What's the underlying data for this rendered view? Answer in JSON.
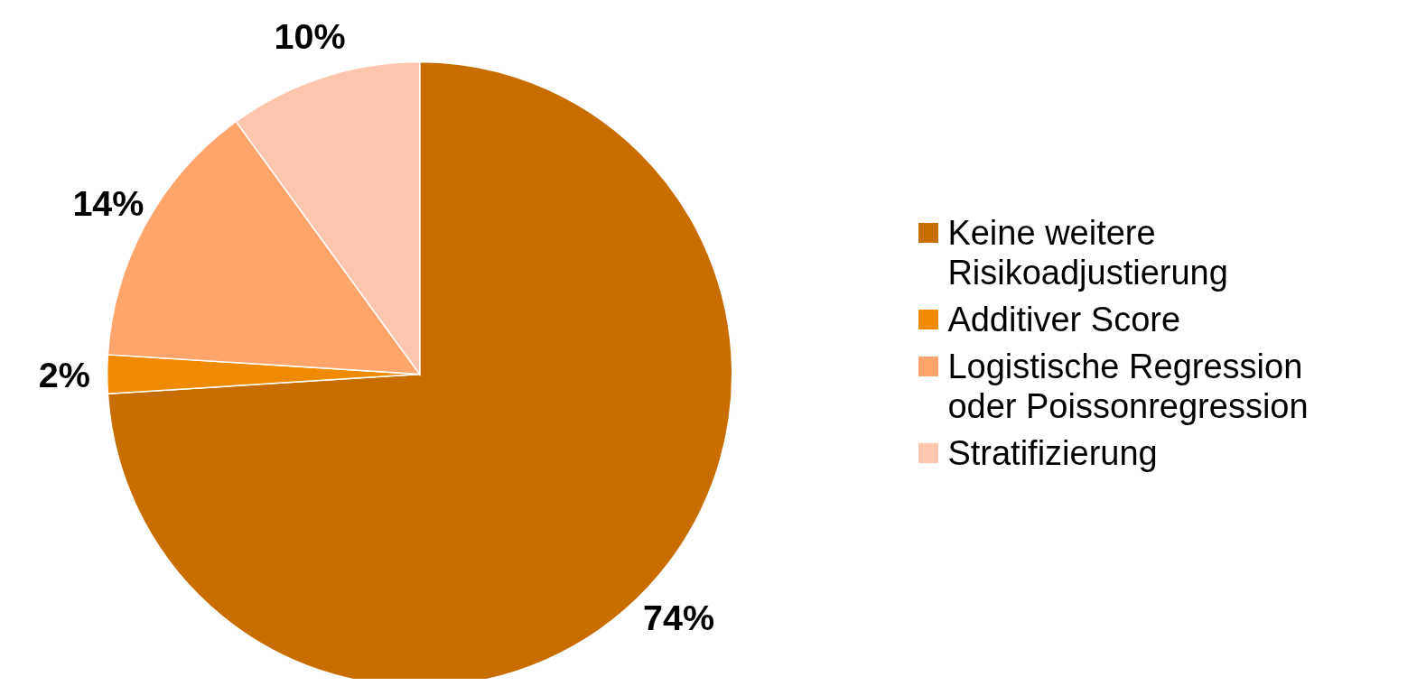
{
  "chart_data": {
    "type": "pie",
    "categories": [
      "Keine weitere Risikoadjustierung",
      "Additiver Score",
      "Logistische Regression oder Poissonregression",
      "Stratifizierung"
    ],
    "values": [
      74,
      2,
      14,
      10
    ],
    "colors": [
      "#c86e00",
      "#f08a00",
      "#ffa46a",
      "#ffc6ae"
    ],
    "value_labels": [
      "74%",
      "2%",
      "14%",
      "10%"
    ],
    "legend": "right"
  }
}
